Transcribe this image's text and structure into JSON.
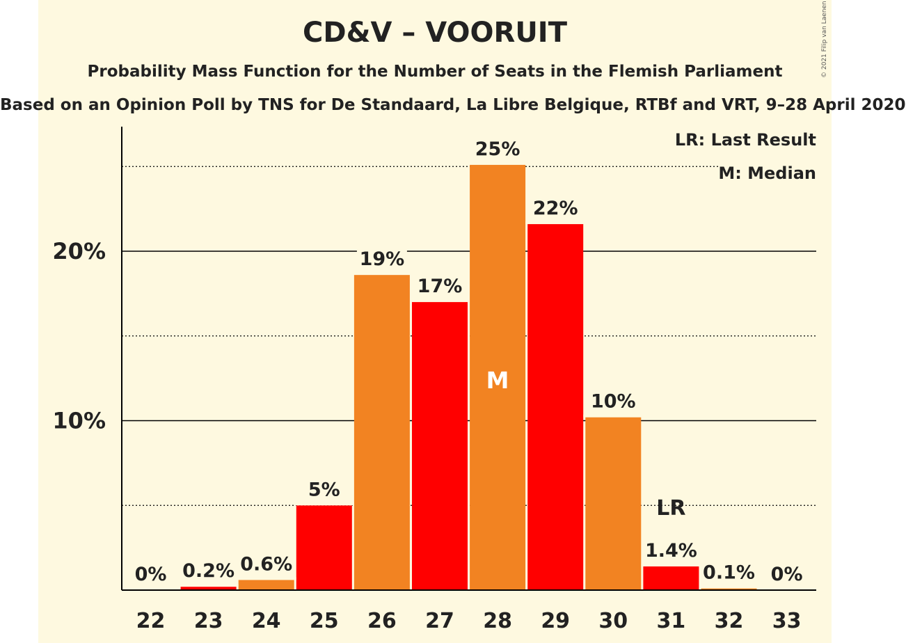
{
  "title": "CD&V – VOORUIT",
  "subtitle": "Probability Mass Function for the Number of Seats in the Flemish Parliament",
  "source": "Based on an Opinion Poll by TNS for De Standaard, La Libre Belgique, RTBf and VRT, 9–28 April 2020",
  "copyright": "© 2021 Filip van Laenen",
  "legend": {
    "lr": "LR: Last Result",
    "m": "M: Median"
  },
  "colors": {
    "orange": "#f28322",
    "red": "#ff0000",
    "background": "#fef9e0"
  },
  "chart_data": {
    "type": "bar",
    "categories": [
      "22",
      "23",
      "24",
      "25",
      "26",
      "27",
      "28",
      "29",
      "30",
      "31",
      "32",
      "33"
    ],
    "values": [
      0,
      0.2,
      0.6,
      5,
      18.6,
      17,
      25.1,
      21.6,
      10.2,
      1.4,
      0.1,
      0
    ],
    "labels": [
      "0%",
      "0.2%",
      "0.6%",
      "5%",
      "19%",
      "17%",
      "25%",
      "22%",
      "10%",
      "1.4%",
      "0.1%",
      "0%"
    ],
    "bar_colors": [
      "#ff0000",
      "#ff0000",
      "#f28322",
      "#ff0000",
      "#f28322",
      "#ff0000",
      "#f28322",
      "#ff0000",
      "#f28322",
      "#ff0000",
      "#f28322",
      "#ff0000"
    ],
    "y_ticks": [
      {
        "value": 10,
        "label": "10%"
      },
      {
        "value": 20,
        "label": "20%"
      }
    ],
    "minor_gridlines": [
      5,
      15,
      25
    ],
    "ylim": [
      0,
      27.2
    ],
    "median": {
      "category": "28",
      "label": "M"
    },
    "last_result": {
      "category": "31",
      "label": "LR"
    },
    "legend_placement": "top-right"
  }
}
